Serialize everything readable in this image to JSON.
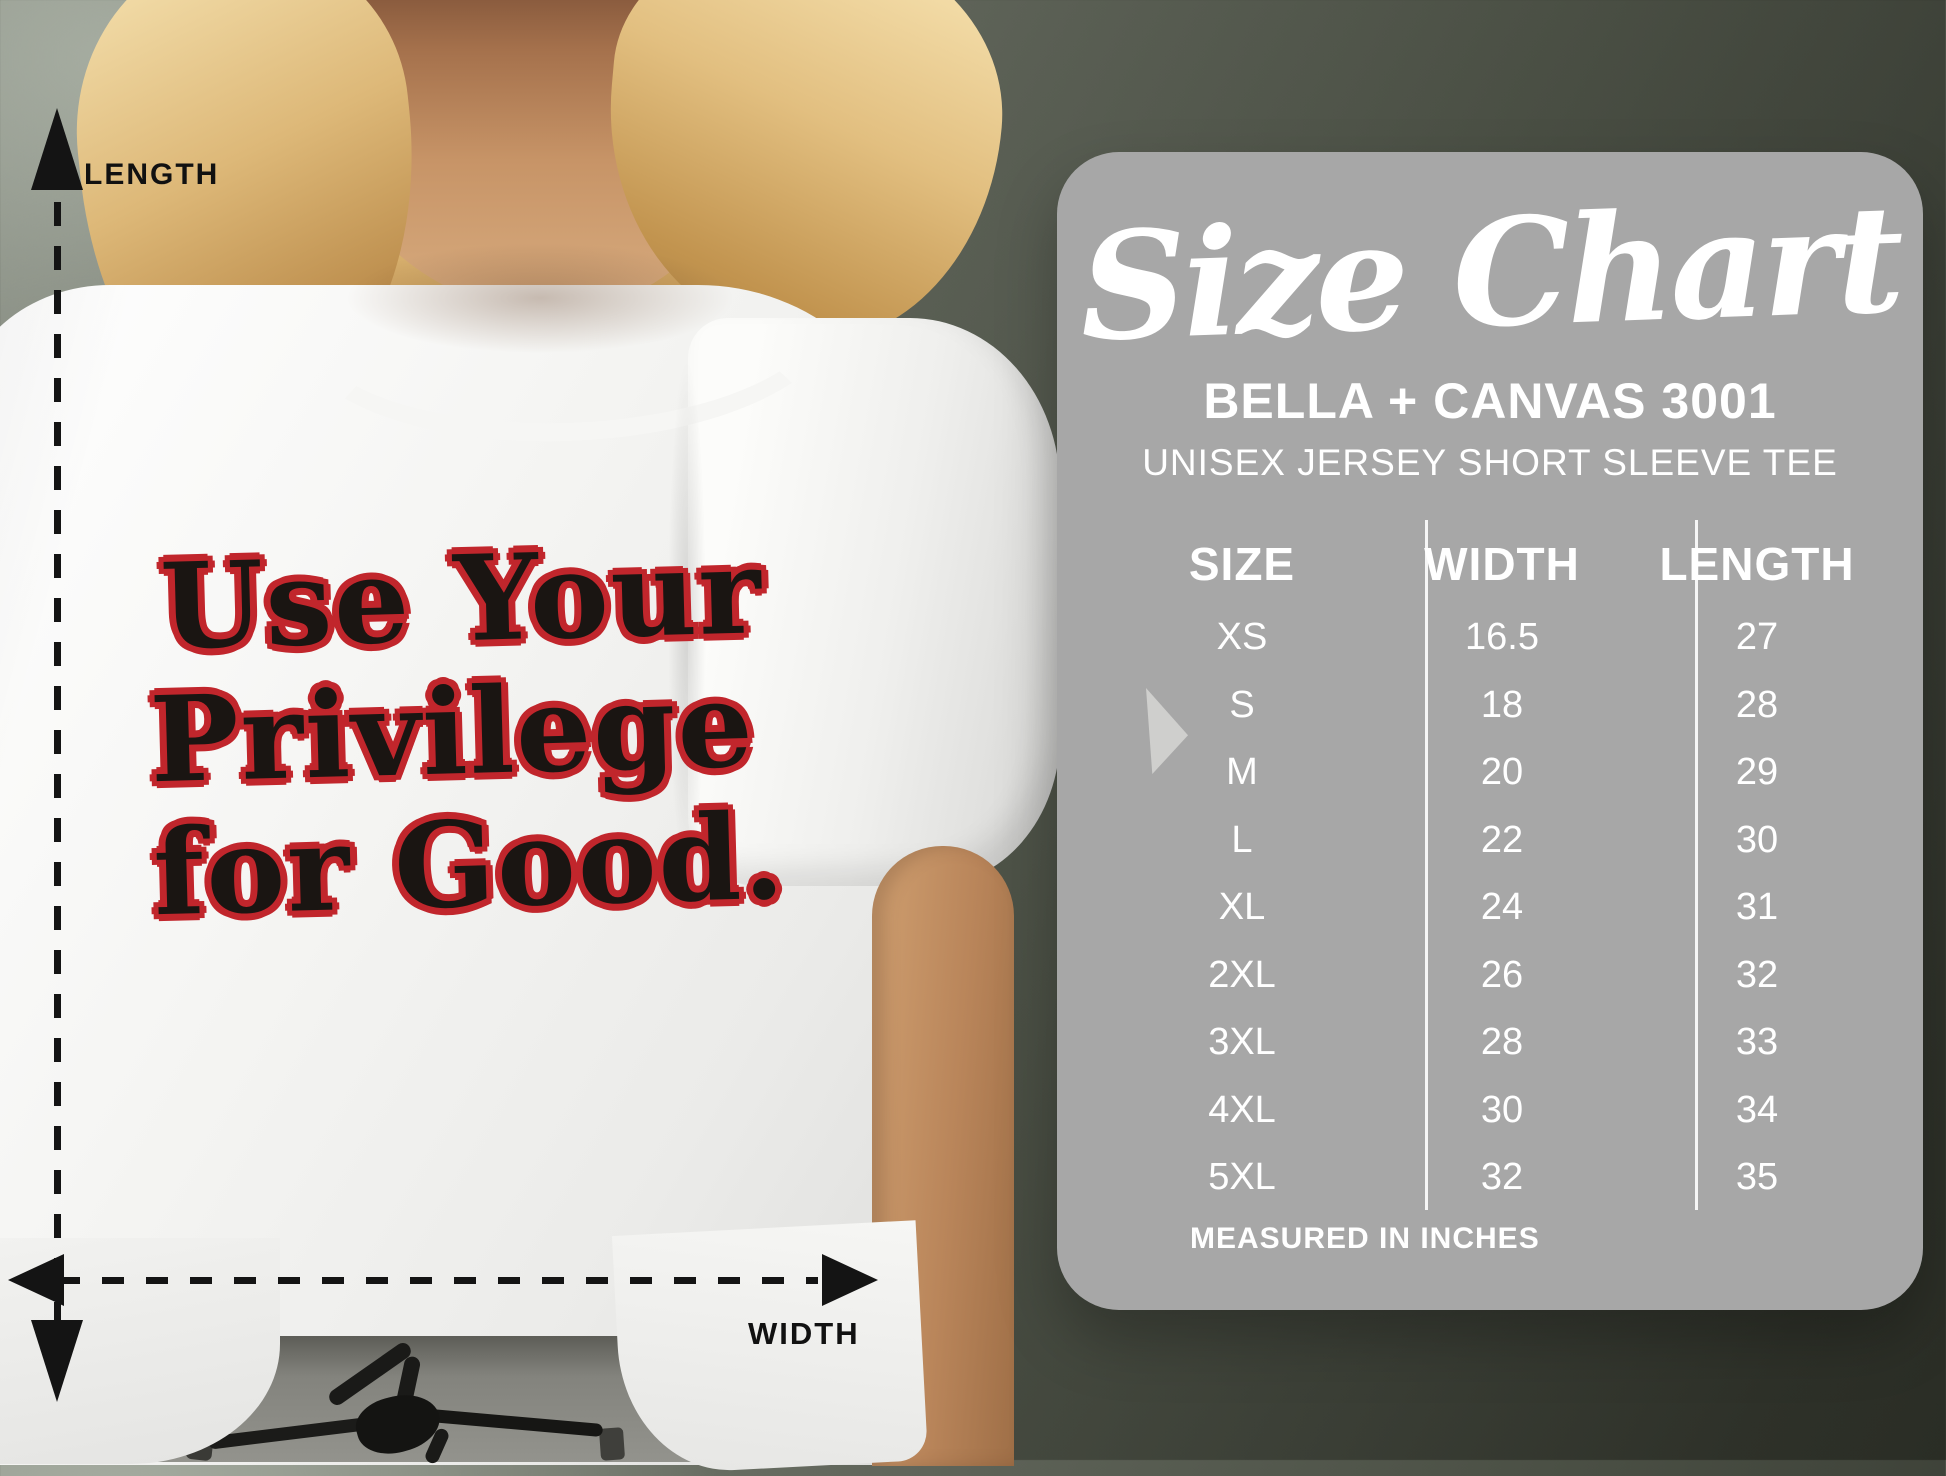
{
  "measurements": {
    "length_label": "LENGTH",
    "width_label": "WIDTH"
  },
  "shirt_print": {
    "line1": "Use Your",
    "line2": "Privilege",
    "line3": "for Good."
  },
  "panel": {
    "title": "Size Chart",
    "brand": "BELLA + CANVAS 3001",
    "product": "UNISEX JERSEY SHORT SLEEVE TEE",
    "footnote": "MEASURED IN INCHES",
    "bg_color": "#a7a7a7",
    "text_color": "#ffffff"
  },
  "colors": {
    "print_fill": "#1a1512",
    "print_outline": "#c1262c",
    "arrow_color": "#141414",
    "background_dark": "#2e3129",
    "background_light": "#878c82"
  },
  "chart_data": {
    "type": "table",
    "title": "Size Chart",
    "columns": [
      "SIZE",
      "WIDTH",
      "LENGTH"
    ],
    "rows": [
      [
        "XS",
        "16.5",
        "27"
      ],
      [
        "S",
        "18",
        "28"
      ],
      [
        "M",
        "20",
        "29"
      ],
      [
        "L",
        "22",
        "30"
      ],
      [
        "XL",
        "24",
        "31"
      ],
      [
        "2XL",
        "26",
        "32"
      ],
      [
        "3XL",
        "28",
        "33"
      ],
      [
        "4XL",
        "30",
        "34"
      ],
      [
        "5XL",
        "32",
        "35"
      ]
    ],
    "units": "MEASURED IN INCHES"
  }
}
